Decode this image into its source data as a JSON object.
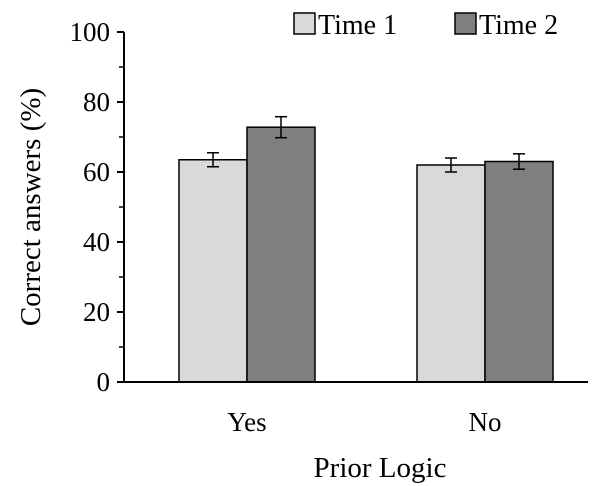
{
  "chart_data": {
    "type": "bar",
    "categories": [
      "Yes",
      "No"
    ],
    "series": [
      {
        "name": "Time 1",
        "values": [
          63.5,
          62.0
        ],
        "errors": [
          2.0,
          2.0
        ],
        "color": "#d9d9d9"
      },
      {
        "name": "Time 2",
        "values": [
          72.8,
          63.0
        ],
        "errors": [
          3.0,
          2.2
        ],
        "color": "#7f7f7f"
      }
    ],
    "xlabel": "Prior Logic",
    "ylabel": "Correct answers (%)",
    "ylim": [
      0,
      100
    ],
    "yticks": [
      "0",
      "20",
      "40",
      "60",
      "80",
      "100"
    ],
    "grid": false,
    "legend": "top"
  }
}
